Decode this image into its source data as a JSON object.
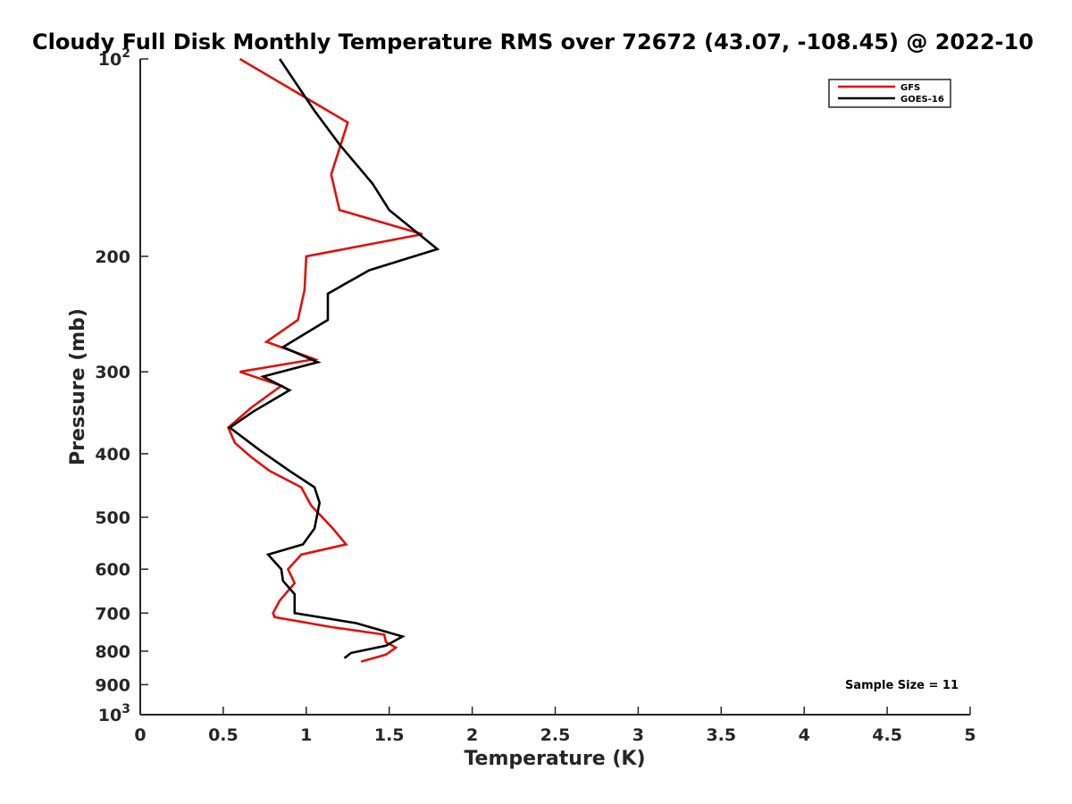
{
  "chart_data": {
    "type": "line",
    "title": "Cloudy Full Disk Monthly Temperature RMS over 72672 (43.07, -108.45) @ 2022-10",
    "xlabel": "Temperature (K)",
    "ylabel": "Pressure (mb)",
    "xlim": [
      0,
      5
    ],
    "ylim": [
      100,
      1000
    ],
    "y_scale": "log",
    "y_reversed": true,
    "grid": false,
    "legend_position": "top-right",
    "x_ticks": [
      "0",
      "0.5",
      "1",
      "1.5",
      "2",
      "2.5",
      "3",
      "3.5",
      "4",
      "4.5",
      "5"
    ],
    "y_ticks": [
      {
        "value": 100,
        "base": "10",
        "exp": "2"
      },
      {
        "value": 200,
        "label": "200"
      },
      {
        "value": 300,
        "label": "300"
      },
      {
        "value": 400,
        "label": "400"
      },
      {
        "value": 500,
        "label": "500"
      },
      {
        "value": 600,
        "label": "600"
      },
      {
        "value": 700,
        "label": "700"
      },
      {
        "value": 800,
        "label": "800"
      },
      {
        "value": 900,
        "label": "900"
      },
      {
        "value": 1000,
        "base": "10",
        "exp": "3"
      }
    ],
    "annotation": "Sample Size = 11",
    "series": [
      {
        "name": "GFS",
        "color": "#e0110b",
        "points": [
          [
            0.6,
            100
          ],
          [
            1.25,
            125
          ],
          [
            1.15,
            150
          ],
          [
            1.2,
            170
          ],
          [
            1.7,
            185
          ],
          [
            1.0,
            200
          ],
          [
            0.99,
            225
          ],
          [
            0.95,
            250
          ],
          [
            0.76,
            270
          ],
          [
            1.05,
            287
          ],
          [
            0.6,
            300
          ],
          [
            0.85,
            315
          ],
          [
            0.67,
            340
          ],
          [
            0.53,
            365
          ],
          [
            0.57,
            385
          ],
          [
            0.67,
            405
          ],
          [
            0.78,
            425
          ],
          [
            0.97,
            450
          ],
          [
            1.03,
            480
          ],
          [
            1.16,
            520
          ],
          [
            1.24,
            550
          ],
          [
            0.97,
            570
          ],
          [
            0.89,
            600
          ],
          [
            0.93,
            630
          ],
          [
            0.84,
            670
          ],
          [
            0.8,
            700
          ],
          [
            0.81,
            710
          ],
          [
            1.15,
            735
          ],
          [
            1.47,
            755
          ],
          [
            1.48,
            775
          ],
          [
            1.54,
            790
          ],
          [
            1.48,
            810
          ],
          [
            1.33,
            830
          ]
        ]
      },
      {
        "name": "GOES-16",
        "color": "#000000",
        "points": [
          [
            0.84,
            100
          ],
          [
            1.05,
            120
          ],
          [
            1.2,
            135
          ],
          [
            1.4,
            155
          ],
          [
            1.5,
            170
          ],
          [
            1.79,
            195
          ],
          [
            1.38,
            210
          ],
          [
            1.13,
            228
          ],
          [
            1.13,
            250
          ],
          [
            0.86,
            275
          ],
          [
            1.07,
            290
          ],
          [
            0.74,
            305
          ],
          [
            0.9,
            320
          ],
          [
            0.68,
            345
          ],
          [
            0.54,
            365
          ],
          [
            0.72,
            395
          ],
          [
            0.9,
            425
          ],
          [
            1.05,
            450
          ],
          [
            1.08,
            475
          ],
          [
            1.05,
            520
          ],
          [
            0.98,
            550
          ],
          [
            0.77,
            570
          ],
          [
            0.85,
            600
          ],
          [
            0.86,
            625
          ],
          [
            0.93,
            655
          ],
          [
            0.93,
            690
          ],
          [
            0.93,
            700
          ],
          [
            1.3,
            725
          ],
          [
            1.58,
            760
          ],
          [
            1.48,
            785
          ],
          [
            1.27,
            805
          ],
          [
            1.23,
            820
          ]
        ]
      }
    ]
  }
}
